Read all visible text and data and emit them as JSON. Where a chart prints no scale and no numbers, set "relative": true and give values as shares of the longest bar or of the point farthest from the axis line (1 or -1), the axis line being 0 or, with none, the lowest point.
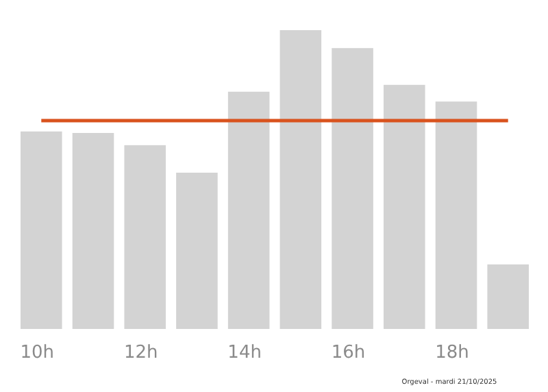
{
  "chart_data": {
    "type": "bar",
    "relative": true,
    "categories": [
      "10h",
      null,
      "12h",
      null,
      "14h",
      null,
      "16h",
      null,
      "18h",
      null
    ],
    "values": [
      0.661,
      0.656,
      0.615,
      0.523,
      0.794,
      1,
      0.94,
      0.817,
      0.761,
      0.216
    ],
    "color": "#d3d3d3",
    "ref_lines": [
      {
        "axis": "y",
        "value": 0.697,
        "color": "#d9531e"
      }
    ],
    "annotations": [
      "Orgeval - mardi 21/10/2025"
    ]
  }
}
